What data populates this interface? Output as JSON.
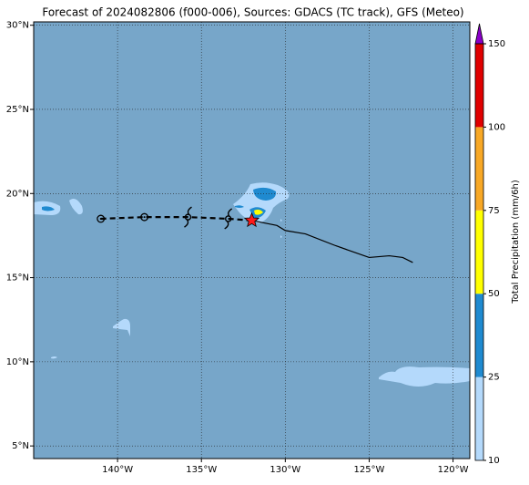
{
  "chart_data": {
    "type": "map",
    "title": "Forecast of 2024082806 (f000-006), Sources: GDACS (TC track), GFS (Meteo)",
    "xlim": [
      -145,
      -119
    ],
    "ylim": [
      4.25,
      30.2
    ],
    "xticks": [
      {
        "value": -140,
        "label": "140°W"
      },
      {
        "value": -135,
        "label": "135°W"
      },
      {
        "value": -130,
        "label": "130°W"
      },
      {
        "value": -125,
        "label": "125°W"
      },
      {
        "value": -120,
        "label": "120°W"
      }
    ],
    "yticks": [
      {
        "value": 5,
        "label": "5°N"
      },
      {
        "value": 10,
        "label": "10°N"
      },
      {
        "value": 15,
        "label": "15°N"
      },
      {
        "value": 20,
        "label": "20°N"
      },
      {
        "value": 25,
        "label": "25°N"
      },
      {
        "value": 30,
        "label": "30°N"
      }
    ],
    "grid": true,
    "ocean_color": "#77a6c9",
    "track": {
      "x": [
        -141,
        -138.4,
        -135.8,
        -133.4,
        -132
      ],
      "y": [
        18.5,
        18.6,
        18.6,
        18.5,
        18.4
      ],
      "markers": [
        "circle",
        "circle",
        "cyclone",
        "cyclone",
        "star"
      ],
      "color": "#000000"
    },
    "forecast_track": {
      "x": [
        -132,
        -130.5,
        -130,
        -128.8,
        -127,
        -125,
        -123.8,
        -123,
        -122.4
      ],
      "y": [
        18.4,
        18.1,
        17.8,
        17.6,
        16.9,
        16.2,
        16.3,
        16.2,
        15.9
      ],
      "color": "#000000"
    },
    "colorbar": {
      "label": "Total Precipitation (mm/6h)",
      "ticks": [
        10,
        25,
        50,
        75,
        100,
        150
      ],
      "colors": [
        "#b4d9fb",
        "#1f8ad0",
        "#ffff00",
        "#f8a825",
        "#e00000"
      ],
      "extend_color": "#8a00c8"
    }
  }
}
